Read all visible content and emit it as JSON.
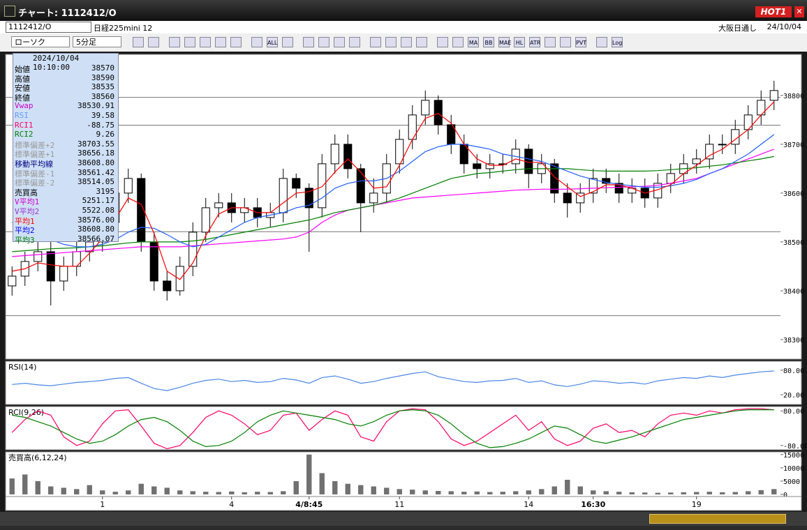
{
  "window": {
    "title": "チャート: 1112412/O",
    "hot_button": "HOT1"
  },
  "toolbar": {
    "symbol": "1112412/O",
    "name": "日経225mini 12",
    "market": "大阪日通し",
    "date": "24/10/04",
    "chart_type": "ローソク",
    "interval": "5分足",
    "buttons": [
      "ALL",
      "MA",
      "BB",
      "MAE",
      "HL",
      "ATR",
      "PVT",
      "Log"
    ]
  },
  "info_panel": {
    "datetime": "2024/10/04 10:10:00",
    "rows": [
      {
        "label": "始値",
        "value": "38570",
        "color": "#000000"
      },
      {
        "label": "高値",
        "value": "38590",
        "color": "#000000"
      },
      {
        "label": "安値",
        "value": "38535",
        "color": "#000000"
      },
      {
        "label": "終値",
        "value": "38560",
        "color": "#000000"
      },
      {
        "label": "Vwap",
        "value": "38530.91",
        "color": "#cc00cc"
      },
      {
        "label": "RSI",
        "value": "39.58",
        "color": "#6699ff"
      },
      {
        "label": "RCI1",
        "value": "-88.75",
        "color": "#ff0066"
      },
      {
        "label": "RCI2",
        "value": "9.26",
        "color": "#008000"
      },
      {
        "label": "標準偏差+2",
        "value": "38703.55",
        "color": "#999999"
      },
      {
        "label": "標準偏差+1",
        "value": "38656.18",
        "color": "#999999"
      },
      {
        "label": "移動平均線",
        "value": "38608.80",
        "color": "#000080"
      },
      {
        "label": "標準偏差-1",
        "value": "38561.42",
        "color": "#999999"
      },
      {
        "label": "標準偏差-2",
        "value": "38514.05",
        "color": "#999999"
      },
      {
        "label": "売買高",
        "value": "3195",
        "color": "#000000"
      },
      {
        "label": "V平均1",
        "value": "5251.17",
        "color": "#cc00cc"
      },
      {
        "label": "V平均2",
        "value": "5522.08",
        "color": "#9933cc"
      },
      {
        "label": "平均1",
        "value": "38576.00",
        "color": "#ff0000"
      },
      {
        "label": "平均2",
        "value": "38608.80",
        "color": "#0000ff"
      },
      {
        "label": "平均3",
        "value": "38566.07",
        "color": "#008000"
      }
    ]
  },
  "chart_data": [
    {
      "type": "candlestick",
      "categories": [
        null,
        null,
        null,
        null,
        null,
        null,
        null,
        "1",
        null,
        null,
        null,
        null,
        null,
        null,
        null,
        null,
        null,
        "4",
        null,
        null,
        null,
        null,
        null,
        "4/8:45",
        null,
        null,
        null,
        null,
        null,
        null,
        "11",
        null,
        null,
        null,
        null,
        null,
        null,
        null,
        null,
        null,
        "14",
        null,
        null,
        null,
        null,
        "16:30",
        null,
        null,
        null,
        null,
        null,
        null,
        null,
        "19",
        null,
        null,
        null,
        null,
        null,
        null
      ],
      "open": [
        38410,
        38430,
        38460,
        38480,
        38420,
        38450,
        38480,
        38500,
        38540,
        38600,
        38630,
        38500,
        38420,
        38400,
        38450,
        38520,
        38570,
        38580,
        38560,
        38570,
        38550,
        38560,
        38630,
        38610,
        38570,
        38660,
        38700,
        38650,
        38580,
        38600,
        38660,
        38710,
        38760,
        38790,
        38740,
        38700,
        38660,
        38650,
        38660,
        38660,
        38690,
        38640,
        38660,
        38600,
        38580,
        38600,
        38630,
        38620,
        38600,
        38610,
        38590,
        38620,
        38640,
        38660,
        38670,
        38700,
        38700,
        38730,
        38760,
        38790
      ],
      "high": [
        38450,
        38480,
        38500,
        38500,
        38470,
        38500,
        38520,
        38560,
        38620,
        38650,
        38640,
        38520,
        38440,
        38470,
        38540,
        38590,
        38600,
        38600,
        38590,
        38590,
        38580,
        38650,
        38640,
        38620,
        38680,
        38720,
        38720,
        38660,
        38630,
        38680,
        38730,
        38780,
        38810,
        38800,
        38760,
        38720,
        38680,
        38680,
        38680,
        38710,
        38700,
        38680,
        38670,
        38620,
        38620,
        38650,
        38650,
        38640,
        38630,
        38630,
        38640,
        38660,
        38680,
        38690,
        38720,
        38720,
        38750,
        38780,
        38810,
        38830
      ],
      "low": [
        38390,
        38410,
        38440,
        38370,
        38400,
        38430,
        38460,
        38480,
        38520,
        38580,
        38480,
        38400,
        38380,
        38390,
        38430,
        38500,
        38550,
        38540,
        38540,
        38530,
        38530,
        38540,
        38590,
        38480,
        38550,
        38640,
        38630,
        38520,
        38560,
        38580,
        38640,
        38690,
        38740,
        38720,
        38680,
        38640,
        38630,
        38630,
        38640,
        38640,
        38610,
        38620,
        38580,
        38550,
        38560,
        38580,
        38600,
        38580,
        38580,
        38570,
        38570,
        38600,
        38620,
        38640,
        38650,
        38680,
        38680,
        38710,
        38740,
        38770
      ],
      "close": [
        38430,
        38460,
        38480,
        38420,
        38450,
        38480,
        38500,
        38540,
        38600,
        38630,
        38500,
        38420,
        38400,
        38450,
        38520,
        38570,
        38580,
        38560,
        38570,
        38550,
        38560,
        38630,
        38610,
        38570,
        38660,
        38700,
        38650,
        38580,
        38600,
        38660,
        38710,
        38760,
        38790,
        38740,
        38700,
        38660,
        38650,
        38660,
        38660,
        38690,
        38640,
        38660,
        38600,
        38580,
        38600,
        38630,
        38620,
        38600,
        38610,
        38590,
        38620,
        38640,
        38660,
        38670,
        38700,
        38700,
        38730,
        38760,
        38790,
        38810
      ],
      "series": [
        {
          "color": "#ff00ff",
          "values": [
            38470,
            38472,
            38474,
            38476,
            38478,
            38480,
            38482,
            38484,
            38486,
            38488,
            38490,
            38490,
            38490,
            38490,
            38492,
            38494,
            38496,
            38498,
            38500,
            38502,
            38504,
            38506,
            38510,
            38520,
            38540,
            38555,
            38565,
            38570,
            38575,
            38580,
            38585,
            38590,
            38592,
            38594,
            38596,
            38598,
            38600,
            38602,
            38604,
            38606,
            38607,
            38608,
            38608,
            38608,
            38609,
            38610,
            38611,
            38612,
            38613,
            38614,
            38616,
            38620,
            38625,
            38630,
            38640,
            38650,
            38660,
            38670,
            38680,
            38690
          ]
        },
        {
          "color": "#008000",
          "values": [
            38480,
            38482,
            38484,
            38486,
            38487,
            38488,
            38490,
            38492,
            38495,
            38498,
            38500,
            38500,
            38500,
            38500,
            38502,
            38505,
            38510,
            38515,
            38520,
            38525,
            38530,
            38535,
            38540,
            38545,
            38552,
            38560,
            38565,
            38570,
            38575,
            38582,
            38590,
            38600,
            38610,
            38620,
            38630,
            38635,
            38640,
            38642,
            38645,
            38648,
            38650,
            38650,
            38650,
            38650,
            38648,
            38646,
            38645,
            38645,
            38645,
            38645,
            38646,
            38648,
            38650,
            38652,
            38655,
            38658,
            38662,
            38666,
            38670,
            38675
          ]
        },
        {
          "color": "#1f5fff",
          "values": [
            38540,
            38530,
            38520,
            38505,
            38495,
            38490,
            38490,
            38495,
            38505,
            38520,
            38530,
            38528,
            38515,
            38500,
            38490,
            38495,
            38510,
            38525,
            38540,
            38550,
            38555,
            38560,
            38570,
            38575,
            38590,
            38610,
            38620,
            38625,
            38625,
            38630,
            38645,
            38665,
            38685,
            38695,
            38700,
            38700,
            38695,
            38690,
            38680,
            38675,
            38670,
            38665,
            38655,
            38645,
            38635,
            38628,
            38622,
            38618,
            38615,
            38612,
            38612,
            38615,
            38620,
            38628,
            38640,
            38650,
            38665,
            38680,
            38700,
            38720
          ]
        },
        {
          "color": "#ff0000",
          "values": [
            38440,
            38445,
            38457,
            38453,
            38450,
            38450,
            38477,
            38507,
            38547,
            38590,
            38577,
            38517,
            38440,
            38423,
            38457,
            38513,
            38557,
            38570,
            38570,
            38560,
            38560,
            38580,
            38600,
            38603,
            38613,
            38643,
            38670,
            38643,
            38610,
            38613,
            38657,
            38710,
            38753,
            38763,
            38743,
            38700,
            38670,
            38657,
            38657,
            38670,
            38663,
            38663,
            38633,
            38613,
            38593,
            38603,
            38617,
            38617,
            38610,
            38600,
            38607,
            38617,
            38640,
            38657,
            38677,
            38690,
            38710,
            38730,
            38760,
            38787
          ]
        }
      ],
      "hlines": [
        38796,
        38739,
        38521,
        38349
      ],
      "ylim": [
        38260,
        38884
      ],
      "yticks": [
        38300,
        38400,
        38500,
        38600,
        38700,
        38800
      ]
    },
    {
      "type": "line",
      "title": "RSI(14)",
      "series": [
        {
          "color": "#4a86e8",
          "values": [
            45,
            48,
            44,
            42,
            46,
            50,
            52,
            55,
            60,
            62,
            48,
            35,
            30,
            38,
            48,
            55,
            58,
            52,
            55,
            50,
            52,
            60,
            56,
            48,
            62,
            66,
            58,
            48,
            52,
            60,
            66,
            72,
            76,
            64,
            58,
            52,
            50,
            54,
            55,
            60,
            50,
            54,
            44,
            40,
            46,
            54,
            52,
            48,
            50,
            46,
            54,
            58,
            62,
            60,
            66,
            62,
            68,
            72,
            76,
            78
          ]
        }
      ],
      "ylim": [
        -4,
        102
      ],
      "yticks": [
        {
          "value": 20,
          "label": "20.00"
        },
        {
          "value": 80,
          "label": "80.00"
        }
      ]
    },
    {
      "type": "line",
      "title": "RCI(9,26)",
      "series": [
        {
          "color": "#ff0066",
          "values": [
            -20,
            40,
            80,
            60,
            -40,
            -80,
            -60,
            20,
            80,
            85,
            10,
            -70,
            -95,
            -80,
            -20,
            50,
            80,
            60,
            20,
            -30,
            -10,
            60,
            70,
            -10,
            40,
            80,
            60,
            -40,
            -60,
            30,
            80,
            90,
            85,
            30,
            -50,
            -80,
            -60,
            -20,
            20,
            60,
            -10,
            30,
            -50,
            -80,
            -60,
            0,
            20,
            -20,
            -10,
            -40,
            20,
            60,
            70,
            60,
            80,
            70,
            85,
            90,
            90,
            85
          ]
        },
        {
          "color": "#008000",
          "values": [
            60,
            50,
            30,
            10,
            -20,
            -50,
            -70,
            -60,
            -30,
            10,
            40,
            50,
            30,
            -10,
            -60,
            -85,
            -80,
            -60,
            -20,
            30,
            60,
            80,
            70,
            60,
            50,
            40,
            20,
            10,
            30,
            60,
            80,
            85,
            80,
            60,
            20,
            -30,
            -70,
            -90,
            -85,
            -70,
            -50,
            -20,
            10,
            0,
            -30,
            -60,
            -70,
            -55,
            -40,
            -20,
            0,
            20,
            40,
            50,
            60,
            70,
            80,
            85,
            85,
            85
          ]
        }
      ],
      "ylim": [
        -100,
        100
      ],
      "yticks": [
        {
          "value": -80,
          "label": "-80.00"
        },
        {
          "value": 80,
          "label": "80.00"
        }
      ]
    },
    {
      "type": "bar",
      "title": "売買高(6,12,24)",
      "color": "#707070",
      "values": [
        6000,
        7500,
        5000,
        3000,
        2500,
        2000,
        3500,
        1500,
        1000,
        1500,
        4000,
        3000,
        2500,
        1500,
        1200,
        1000,
        900,
        1100,
        800,
        1000,
        900,
        1200,
        5000,
        15000,
        8000,
        5000,
        4000,
        3500,
        3000,
        2500,
        2000,
        1800,
        1500,
        1300,
        1200,
        1000,
        1100,
        900,
        1000,
        1200,
        1500,
        2000,
        3000,
        5500,
        3000,
        1500,
        1200,
        1000,
        800,
        700,
        600,
        700,
        800,
        900,
        1000,
        800,
        900,
        1200,
        1600,
        2000
      ],
      "ylim": [
        -800,
        16000
      ],
      "yticks": [
        0,
        5000,
        10000,
        15000
      ]
    }
  ]
}
